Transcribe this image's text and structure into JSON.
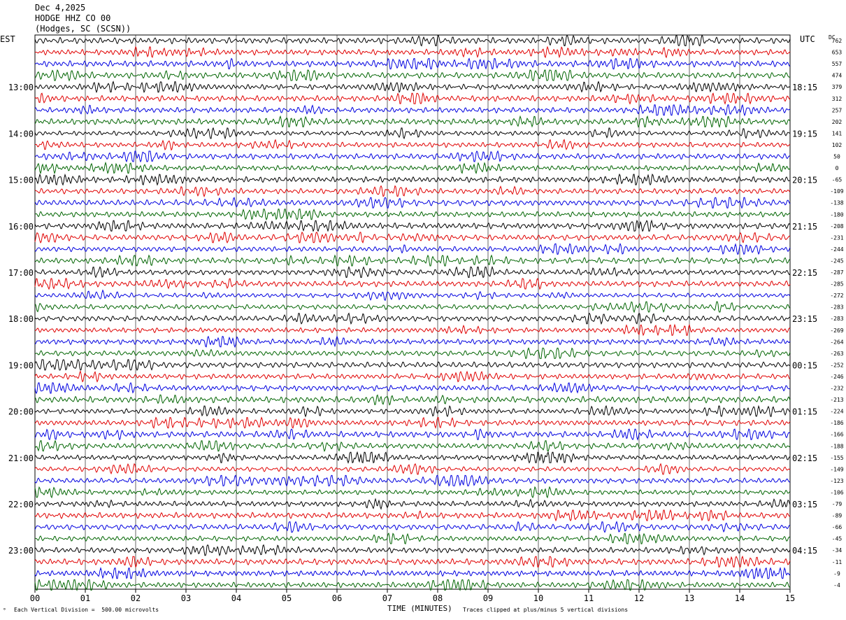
{
  "header": {
    "date": "Dec 4,2025",
    "station": "HODGE HHZ CO 00",
    "location": "(Hodges, SC (SCSN))"
  },
  "left_axis_label": "EST",
  "right_axis_label": "UTC",
  "dc_label": "DC",
  "footer": {
    "scale_note": "Each Vertical Division =  500.00 microvolts",
    "xlabel": "TIME (MINUTES)",
    "clip_note": "Traces clipped at plus/minus 5 vertical divisions"
  },
  "chart_data": {
    "type": "line",
    "title": "",
    "xlabel": "TIME (MINUTES)",
    "ylabel": "",
    "xlim": [
      0,
      15
    ],
    "x_ticks": [
      "00",
      "01",
      "02",
      "03",
      "04",
      "05",
      "06",
      "07",
      "08",
      "09",
      "10",
      "11",
      "12",
      "13",
      "14",
      "15"
    ],
    "traces_per_hour": 4,
    "trace_colors": [
      "#000000",
      "#e00000",
      "#0000e0",
      "#006400"
    ],
    "est_hour_labels": [
      "13:00",
      "14:00",
      "15:00",
      "16:00",
      "17:00",
      "18:00",
      "19:00",
      "20:00",
      "21:00",
      "22:00",
      "23:00"
    ],
    "utc_hour_labels": [
      "18:15",
      "19:15",
      "20:15",
      "21:15",
      "22:15",
      "23:15",
      "00:15",
      "01:15",
      "02:15",
      "03:15",
      "04:15"
    ],
    "dc_offsets": [
      "762",
      "653",
      "557",
      "474",
      "379",
      "312",
      "257",
      "202",
      "141",
      "102",
      "50",
      "0",
      "-65",
      "-109",
      "-138",
      "-180",
      "-208",
      "-231",
      "-244",
      "-245",
      "-287",
      "-285",
      "-272",
      "-283",
      "-283",
      "-269",
      "-264",
      "-263",
      "-252",
      "-246",
      "-232",
      "-213",
      "-224",
      "-186",
      "-166",
      "-188",
      "-155",
      "-149",
      "-123",
      "-106",
      "-79",
      "-89",
      "-66",
      "-45",
      "-34",
      "-11",
      "-9",
      "-4"
    ],
    "grid": true
  }
}
